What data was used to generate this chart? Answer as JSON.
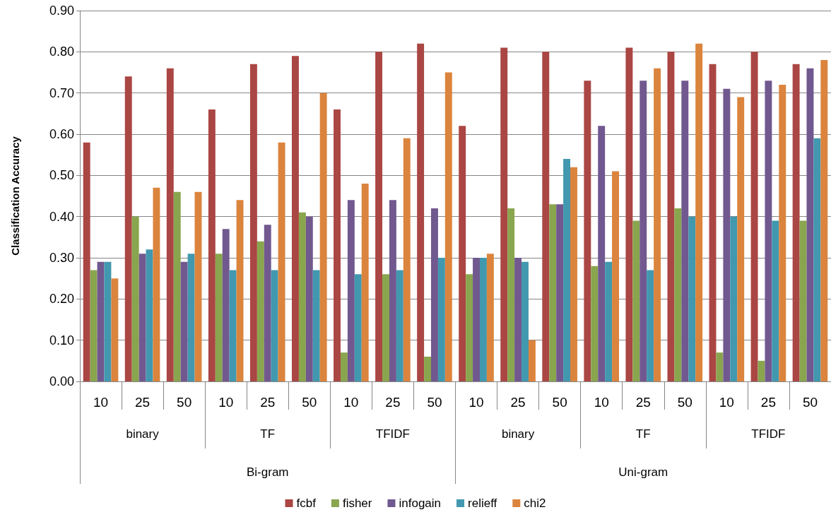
{
  "chart_data": {
    "type": "bar",
    "ylabel": "Classification Accuracy",
    "categories": [
      "10",
      "25",
      "50",
      "10",
      "25",
      "50",
      "10",
      "25",
      "50",
      "10",
      "25",
      "50",
      "10",
      "25",
      "50",
      "10",
      "25",
      "50"
    ],
    "series": [
      {
        "name": "fcbf",
        "color": "#aa4643",
        "values": [
          0.58,
          0.74,
          0.76,
          0.66,
          0.77,
          0.79,
          0.66,
          0.8,
          0.82,
          0.62,
          0.81,
          0.8,
          0.73,
          0.81,
          0.8,
          0.77,
          0.8,
          0.77
        ]
      },
      {
        "name": "fisher",
        "color": "#89a54e",
        "values": [
          0.27,
          0.4,
          0.46,
          0.31,
          0.34,
          0.41,
          0.07,
          0.26,
          0.06,
          0.26,
          0.42,
          0.43,
          0.28,
          0.39,
          0.42,
          0.07,
          0.05,
          0.39
        ]
      },
      {
        "name": "infogain",
        "color": "#71588f",
        "values": [
          0.29,
          0.31,
          0.29,
          0.37,
          0.38,
          0.4,
          0.44,
          0.44,
          0.42,
          0.3,
          0.3,
          0.43,
          0.62,
          0.73,
          0.73,
          0.71,
          0.73,
          0.76
        ]
      },
      {
        "name": "relieff",
        "color": "#4198af",
        "values": [
          0.29,
          0.32,
          0.31,
          0.27,
          0.27,
          0.27,
          0.26,
          0.27,
          0.3,
          0.3,
          0.29,
          0.54,
          0.29,
          0.27,
          0.4,
          0.4,
          0.39,
          0.59
        ]
      },
      {
        "name": "chi2",
        "color": "#db843d",
        "values": [
          0.25,
          0.47,
          0.46,
          0.44,
          0.58,
          0.7,
          0.48,
          0.59,
          0.75,
          0.31,
          0.1,
          0.52,
          0.51,
          0.76,
          0.82,
          0.69,
          0.72,
          0.78
        ]
      }
    ],
    "annotations": [
      "binary",
      "TF",
      "TFIDF",
      "binary",
      "TF",
      "TFIDF",
      "Bi-gram",
      "Uni-gram"
    ],
    "ylim": [
      0,
      0.9
    ],
    "yticks": [
      {
        "value": 0,
        "label": "0.00"
      },
      {
        "value": 0.1,
        "label": "0.10"
      },
      {
        "value": 0.2,
        "label": "0.20"
      },
      {
        "value": 0.3,
        "label": "0.30"
      },
      {
        "value": 0.4,
        "label": "0.40"
      },
      {
        "value": 0.5,
        "label": "0.50"
      },
      {
        "value": 0.6,
        "label": "0.60"
      },
      {
        "value": 0.7,
        "label": "0.70"
      },
      {
        "value": 0.8,
        "label": "0.80"
      },
      {
        "value": 0.9,
        "label": "0.90"
      }
    ],
    "grid": "y",
    "legend": "bottom"
  }
}
